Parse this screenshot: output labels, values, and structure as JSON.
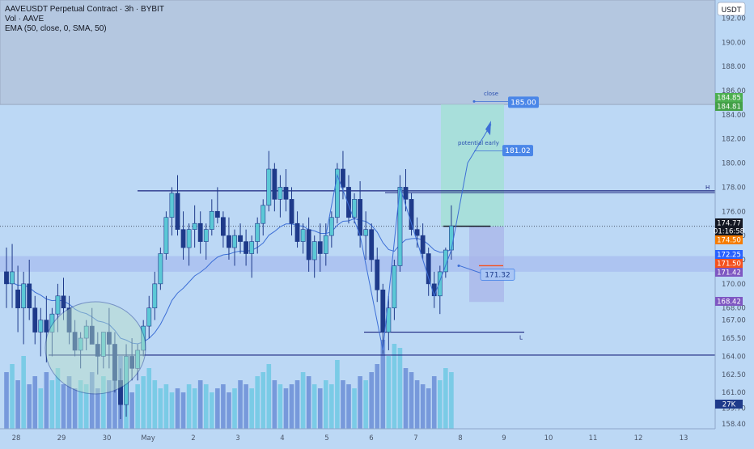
{
  "header": {
    "title": "AAVEUSDT Perpetual Contract · 3h · BYBIT",
    "vol_label": "Vol · AAVE",
    "ema_label": "EMA (50, close, 0, SMA, 50)"
  },
  "price_scale": {
    "currency": "USDT",
    "ticks": [
      "192.00",
      "190.00",
      "188.00",
      "186.00",
      "184.00",
      "182.00",
      "180.00",
      "178.00",
      "176.00",
      "174.00",
      "172.00",
      "170.00",
      "168.00",
      "167.00",
      "165.50",
      "164.00",
      "162.50",
      "161.00",
      "159.70",
      "158.40"
    ]
  },
  "price_badges": [
    {
      "text": "184.85",
      "color": "#4caf50"
    },
    {
      "text": "184.81",
      "color": "#43a047"
    },
    {
      "text": "174.77",
      "color": "#131722"
    },
    {
      "text": "01:16:58",
      "color": "#131722"
    },
    {
      "text": "174.50",
      "color": "#f57c00"
    },
    {
      "text": "172.25",
      "color": "#2962ff"
    },
    {
      "text": "171.50",
      "color": "#f4511e"
    },
    {
      "text": "171.42",
      "color": "#7e57c2"
    },
    {
      "text": "168.42",
      "color": "#7e57c2"
    },
    {
      "text": "27K",
      "color": "#1e3a8a"
    }
  ],
  "time_axis": {
    "labels": [
      "28",
      "29",
      "30",
      "May",
      "2",
      "3",
      "4",
      "5",
      "6",
      "7",
      "8",
      "9",
      "10",
      "11",
      "12",
      "13"
    ]
  },
  "annotations": {
    "close_label": "close",
    "close_price": "185.00",
    "early_label": "potential early",
    "early_price": "181.02",
    "entry_price": "171.32",
    "h_marker": "H",
    "l_marker": "L"
  },
  "colors": {
    "background": "#bcd8f5",
    "candle_up": "#5bc8d6",
    "candle_down": "#1e3a8a",
    "ema": "#3d6fd6",
    "resistance": "#1a237e"
  },
  "chart_data": {
    "type": "candlestick",
    "symbol": "AAVEUSDT",
    "timeframe": "3h",
    "exchange": "BYBIT",
    "y_range": [
      158.0,
      193.5
    ],
    "x_labels": [
      "28",
      "29",
      "30",
      "May",
      "2",
      "3",
      "4",
      "5",
      "6",
      "7",
      "8",
      "9",
      "10",
      "11",
      "12",
      "13"
    ],
    "levels": [
      {
        "name": "resistance",
        "price": 177.7
      },
      {
        "name": "H",
        "price": 177.6
      },
      {
        "name": "support",
        "price": 164.1
      },
      {
        "name": "L",
        "price": 166.0
      },
      {
        "name": "current",
        "price": 174.77
      }
    ],
    "candles": [
      [
        0,
        171,
        173,
        168,
        170
      ],
      [
        1,
        170,
        173.3,
        168,
        171
      ],
      [
        2,
        169.5,
        171.5,
        166,
        168
      ],
      [
        3,
        168,
        171,
        165,
        170
      ],
      [
        4,
        170,
        172,
        167,
        168
      ],
      [
        5,
        168,
        169,
        165,
        166
      ],
      [
        6,
        166,
        168,
        164,
        167
      ],
      [
        7,
        167,
        169,
        163.5,
        166
      ],
      [
        8,
        166,
        168,
        164,
        167.5
      ],
      [
        9,
        167.5,
        170,
        166,
        169
      ],
      [
        10,
        169,
        170.5,
        167,
        168
      ],
      [
        11,
        168,
        169,
        165,
        166
      ],
      [
        12,
        166,
        167,
        164,
        164.5
      ],
      [
        13,
        164.5,
        166,
        163,
        165.5
      ],
      [
        14,
        165.5,
        167,
        164.5,
        166.5
      ],
      [
        15,
        166.5,
        168,
        165,
        165
      ],
      [
        16,
        165,
        166,
        162.5,
        164
      ],
      [
        17,
        164,
        166,
        163,
        166
      ],
      [
        18,
        166,
        168,
        163,
        165
      ],
      [
        19,
        165,
        166,
        161,
        162
      ],
      [
        20,
        162,
        163,
        158.8,
        160
      ],
      [
        21,
        160,
        165,
        159,
        164
      ],
      [
        22,
        164,
        165.5,
        162,
        163
      ],
      [
        23,
        163,
        165,
        162,
        164.5
      ],
      [
        24,
        164.5,
        167,
        164,
        166.5
      ],
      [
        25,
        166.5,
        169,
        165.5,
        168
      ],
      [
        26,
        168,
        171,
        167,
        170
      ],
      [
        27,
        170,
        173,
        169.5,
        172.5
      ],
      [
        28,
        172.5,
        176,
        172,
        175.5
      ],
      [
        29,
        175.5,
        178,
        174,
        177.5
      ],
      [
        30,
        177.5,
        179,
        174,
        174.5
      ],
      [
        31,
        174.5,
        176,
        172,
        173
      ],
      [
        32,
        173,
        175,
        171.5,
        174.5
      ],
      [
        33,
        174.5,
        176.5,
        173,
        175
      ],
      [
        34,
        175,
        176,
        172.5,
        173.5
      ],
      [
        35,
        173.5,
        175,
        172,
        174.5
      ],
      [
        36,
        174.5,
        177,
        174,
        176
      ],
      [
        37,
        176,
        178,
        175,
        175.5
      ],
      [
        38,
        175.5,
        176,
        173,
        174
      ],
      [
        39,
        174,
        175.5,
        172,
        173
      ],
      [
        40,
        173,
        174.5,
        171.5,
        174
      ],
      [
        41,
        174,
        175,
        172.5,
        173.5
      ],
      [
        42,
        173.5,
        174.5,
        171.5,
        172.5
      ],
      [
        43,
        172.5,
        174,
        170.5,
        173.5
      ],
      [
        44,
        173.5,
        175.5,
        172.5,
        175
      ],
      [
        45,
        175,
        177,
        174,
        176.5
      ],
      [
        46,
        176.5,
        181,
        176,
        179.5
      ],
      [
        47,
        179.5,
        180,
        176,
        177
      ],
      [
        48,
        177,
        179,
        175.5,
        178
      ],
      [
        49,
        178,
        179.5,
        176,
        177
      ],
      [
        50,
        177,
        178,
        174,
        175
      ],
      [
        51,
        175,
        176,
        173,
        173.5
      ],
      [
        52,
        173.5,
        175,
        172.5,
        174.5
      ],
      [
        53,
        174.5,
        175.5,
        171,
        172
      ],
      [
        54,
        172,
        174,
        170.5,
        173.5
      ],
      [
        55,
        173.5,
        175,
        171,
        172.5
      ],
      [
        56,
        172.5,
        175,
        171.5,
        174
      ],
      [
        57,
        174,
        176,
        173,
        175.5
      ],
      [
        58,
        175.5,
        180,
        175,
        179.5
      ],
      [
        59,
        179.5,
        181,
        177,
        178
      ],
      [
        60,
        178,
        179,
        175,
        175.5
      ],
      [
        61,
        175.5,
        177.5,
        175,
        177
      ],
      [
        62,
        177,
        178.5,
        173,
        174
      ],
      [
        63,
        174,
        176,
        172,
        174.5
      ],
      [
        64,
        174.5,
        175,
        171,
        172
      ],
      [
        65,
        172,
        173,
        168.5,
        169.5
      ],
      [
        66,
        169.5,
        170,
        164.2,
        166
      ],
      [
        67,
        166,
        169,
        164.5,
        168
      ],
      [
        68,
        168,
        172,
        167,
        171.5
      ],
      [
        69,
        171.5,
        179,
        171,
        178
      ],
      [
        70,
        178,
        179.5,
        176,
        177
      ],
      [
        71,
        177,
        177.5,
        174,
        174.5
      ],
      [
        72,
        174.5,
        175.5,
        173,
        174
      ],
      [
        73,
        174,
        175,
        172,
        172.5
      ],
      [
        74,
        172.5,
        173,
        169,
        170
      ],
      [
        75,
        170,
        171,
        168,
        169
      ],
      [
        76,
        169,
        171.5,
        167.5,
        171
      ],
      [
        77,
        171,
        173,
        170.5,
        172.8
      ],
      [
        78,
        172.8,
        176.5,
        172,
        174.8
      ]
    ],
    "volume": [
      14,
      16,
      12,
      18,
      11,
      13,
      10,
      14,
      12,
      15,
      11,
      13,
      10,
      12,
      11,
      14,
      10,
      13,
      12,
      16,
      18,
      12,
      9,
      11,
      13,
      15,
      12,
      10,
      11,
      9,
      10,
      9,
      11,
      10,
      12,
      11,
      9,
      10,
      11,
      9,
      10,
      12,
      11,
      10,
      13,
      14,
      16,
      12,
      11,
      10,
      11,
      12,
      14,
      13,
      11,
      10,
      12,
      11,
      17,
      12,
      11,
      10,
      13,
      12,
      14,
      16,
      22,
      18,
      21,
      20,
      15,
      14,
      12,
      11,
      10,
      13,
      12,
      15,
      14
    ]
  }
}
